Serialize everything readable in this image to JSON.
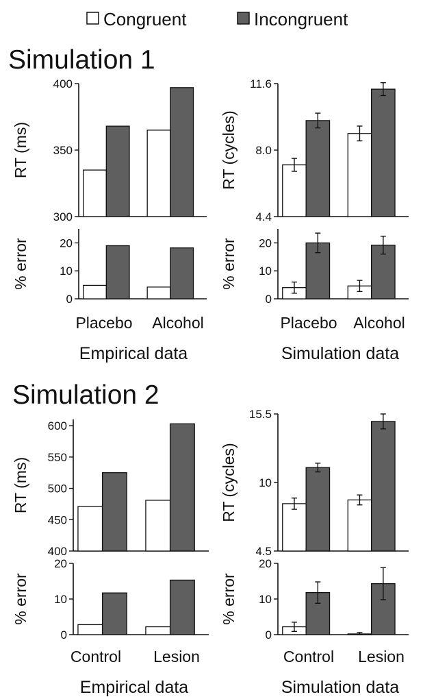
{
  "legend": {
    "items": [
      {
        "label": "Congruent",
        "color": "#ffffff"
      },
      {
        "label": "Incongruent",
        "color": "#5f5f5f"
      }
    ]
  },
  "sections": [
    {
      "title": "Simulation 1"
    },
    {
      "title": "Simulation 2"
    }
  ],
  "colors": {
    "congruent": "#ffffff",
    "incongruent": "#5f5f5f",
    "stroke": "#111111"
  },
  "chart_data": [
    {
      "type": "bar",
      "section": "Simulation 1",
      "caption": "Empirical data",
      "categories": [
        "Placebo",
        "Alcohol"
      ],
      "series": [
        {
          "name": "Congruent",
          "values": [
            335,
            365
          ]
        },
        {
          "name": "Incongruent",
          "values": [
            368,
            397
          ]
        }
      ],
      "ylabel": "RT (ms)",
      "ylim": [
        300,
        400
      ],
      "yticks": [
        "300",
        "350",
        "400"
      ]
    },
    {
      "type": "bar",
      "section": "Simulation 1",
      "caption": "Empirical data",
      "categories": [
        "Placebo",
        "Alcohol"
      ],
      "series": [
        {
          "name": "Congruent",
          "values": [
            4.8,
            4.2
          ]
        },
        {
          "name": "Incongruent",
          "values": [
            19,
            18.2
          ]
        }
      ],
      "ylabel": "% error",
      "ylim": [
        0,
        25
      ],
      "yticks": [
        "0",
        "10",
        "20"
      ]
    },
    {
      "type": "bar",
      "section": "Simulation 1",
      "caption": "Simulation data",
      "categories": [
        "Placebo",
        "Alcohol"
      ],
      "series": [
        {
          "name": "Congruent",
          "values": [
            7.2,
            8.9
          ],
          "errors": [
            0.35,
            0.4
          ]
        },
        {
          "name": "Incongruent",
          "values": [
            9.6,
            11.3
          ],
          "errors": [
            0.4,
            0.35
          ]
        }
      ],
      "ylabel": "RT (cycles)",
      "ylim": [
        4.4,
        11.6
      ],
      "yticks": [
        "4.4",
        "8.0",
        "11.6"
      ]
    },
    {
      "type": "bar",
      "section": "Simulation 1",
      "caption": "Simulation data",
      "categories": [
        "Placebo",
        "Alcohol"
      ],
      "series": [
        {
          "name": "Congruent",
          "values": [
            4,
            4.6
          ],
          "errors": [
            2,
            2
          ]
        },
        {
          "name": "Incongruent",
          "values": [
            20,
            19.2
          ],
          "errors": [
            3.5,
            3.2
          ]
        }
      ],
      "ylabel": "% error",
      "ylim": [
        0,
        25
      ],
      "yticks": [
        "0",
        "10",
        "20"
      ]
    },
    {
      "type": "bar",
      "section": "Simulation 2",
      "caption": "Empirical data",
      "categories": [
        "Control",
        "Lesion"
      ],
      "series": [
        {
          "name": "Congruent",
          "values": [
            471,
            481
          ]
        },
        {
          "name": "Incongruent",
          "values": [
            525,
            603
          ]
        }
      ],
      "ylabel": "RT (ms)",
      "ylim": [
        400,
        610
      ],
      "yticks": [
        "400",
        "450",
        "500",
        "550",
        "600"
      ]
    },
    {
      "type": "bar",
      "section": "Simulation 2",
      "caption": "Empirical data",
      "categories": [
        "Control",
        "Lesion"
      ],
      "series": [
        {
          "name": "Congruent",
          "values": [
            2.8,
            2.2
          ]
        },
        {
          "name": "Incongruent",
          "values": [
            11.7,
            15.3
          ]
        }
      ],
      "ylabel": "% error",
      "ylim": [
        0,
        20
      ],
      "yticks": [
        "0",
        "10",
        "20"
      ]
    },
    {
      "type": "bar",
      "section": "Simulation 2",
      "caption": "Simulation data",
      "categories": [
        "Control",
        "Lesion"
      ],
      "series": [
        {
          "name": "Congruent",
          "values": [
            8.3,
            8.6
          ],
          "errors": [
            0.45,
            0.4
          ]
        },
        {
          "name": "Incongruent",
          "values": [
            11.2,
            14.9
          ],
          "errors": [
            0.35,
            0.6
          ]
        }
      ],
      "ylabel": "RT (cycles)",
      "ylim": [
        4.5,
        15.5
      ],
      "yticks": [
        "4.5",
        "10",
        "15.5"
      ]
    },
    {
      "type": "bar",
      "section": "Simulation 2",
      "caption": "Simulation data",
      "categories": [
        "Control",
        "Lesion"
      ],
      "series": [
        {
          "name": "Congruent",
          "values": [
            2.2,
            0.2
          ],
          "errors": [
            1.3,
            0.4
          ]
        },
        {
          "name": "Incongruent",
          "values": [
            11.8,
            14.3
          ],
          "errors": [
            3,
            4.5
          ]
        }
      ],
      "ylabel": "% error",
      "ylim": [
        0,
        20
      ],
      "yticks": [
        "0",
        "10",
        "20"
      ]
    }
  ]
}
